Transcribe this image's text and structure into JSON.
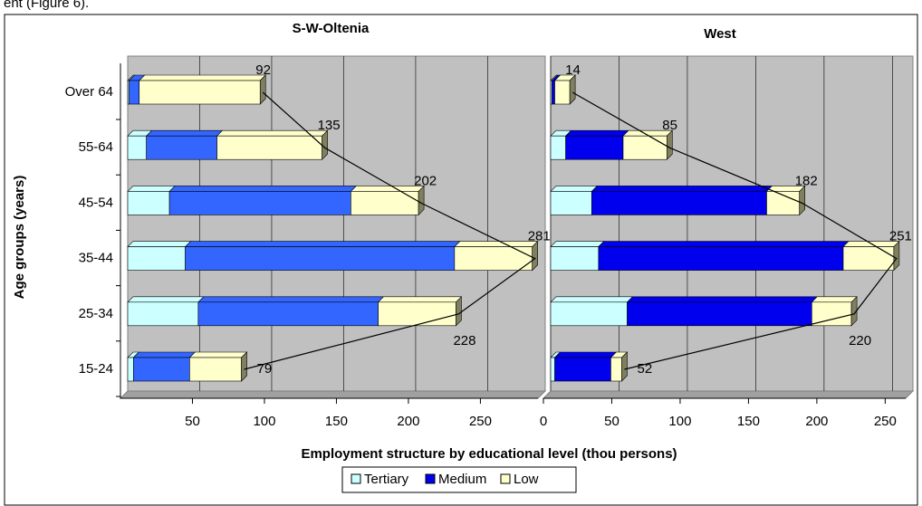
{
  "caption_fragment": "ent (Figure 6).",
  "y_label": "Age groups (years)",
  "x_label": "Employment structure  by educational level (thou persons)",
  "chart_data": [
    {
      "type": "stacked-bar-horizontal",
      "title": "S-W-Oltenia",
      "categories": [
        "15-24",
        "25-34",
        "35-44",
        "45-54",
        "55-64",
        "Over 64"
      ],
      "series": [
        {
          "name": "Tertiary",
          "color": "#ccffff",
          "values": [
            4,
            49,
            40,
            29,
            13,
            1
          ]
        },
        {
          "name": "Medium",
          "color": "#3366ff",
          "values": [
            39,
            125,
            187,
            126,
            49,
            7
          ]
        },
        {
          "name": "Low",
          "color": "#ffffcc",
          "values": [
            36,
            54,
            54,
            47,
            73,
            84
          ]
        }
      ],
      "totals": [
        79,
        228,
        281,
        202,
        135,
        92
      ],
      "xlim": [
        0,
        290
      ],
      "xticks": [
        50,
        100,
        150,
        200,
        250
      ]
    },
    {
      "type": "stacked-bar-horizontal",
      "title": "West",
      "categories": [
        "15-24",
        "25-34",
        "35-44",
        "45-54",
        "55-64",
        "Over 64"
      ],
      "series": [
        {
          "name": "Tertiary",
          "color": "#ccffff",
          "values": [
            3,
            56,
            35,
            30,
            11,
            1
          ]
        },
        {
          "name": "Medium",
          "color": "#0000ee",
          "values": [
            41,
            135,
            179,
            128,
            42,
            2
          ]
        },
        {
          "name": "Low",
          "color": "#ffffcc",
          "values": [
            8,
            29,
            37,
            24,
            32,
            11
          ]
        }
      ],
      "totals": [
        52,
        220,
        251,
        182,
        85,
        14
      ],
      "xlim": [
        0,
        265
      ],
      "xticks": [
        0,
        50,
        100,
        150,
        200,
        250
      ]
    }
  ]
}
